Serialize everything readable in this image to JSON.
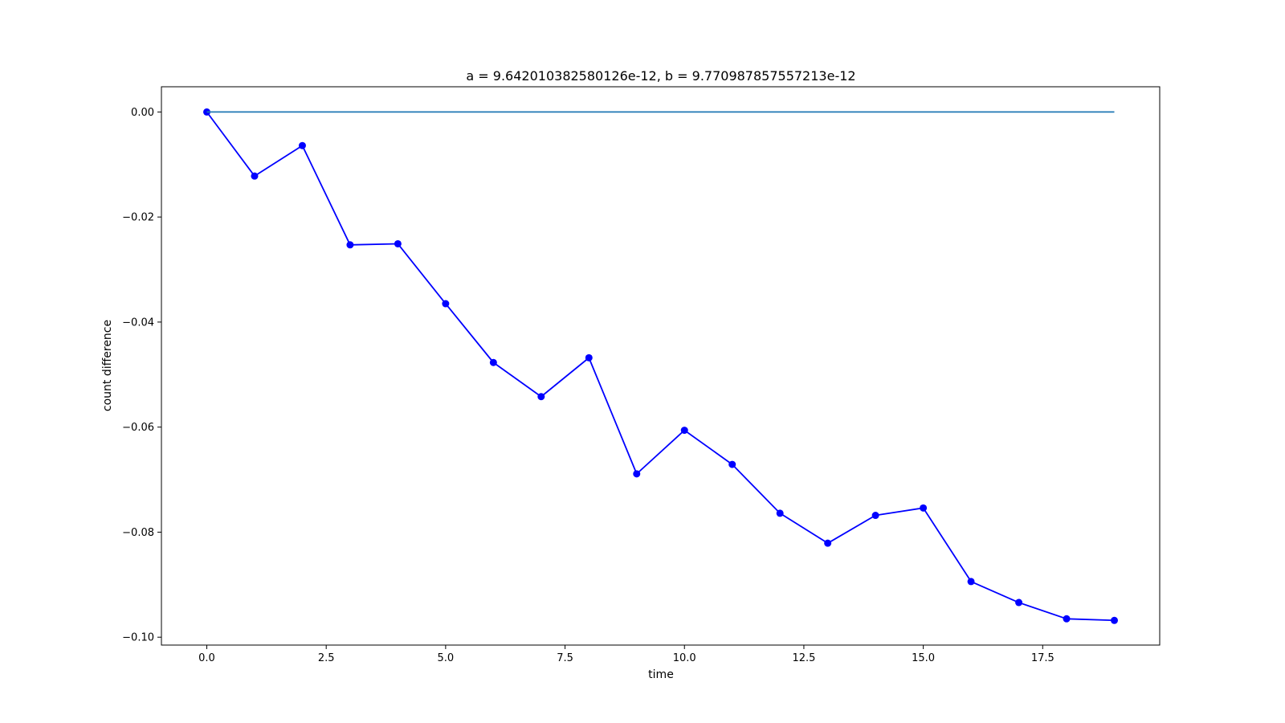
{
  "chart_data": {
    "type": "line",
    "title": "a = 9.642010382580126e-12, b = 9.770987857557213e-12",
    "xlabel": "time",
    "ylabel": "count difference",
    "xlim": [
      -0.95,
      19.95
    ],
    "ylim": [
      -0.1015,
      0.0048
    ],
    "x_ticks": [
      0.0,
      2.5,
      5.0,
      7.5,
      10.0,
      12.5,
      15.0,
      17.5
    ],
    "x_tick_labels": [
      "0.0",
      "2.5",
      "5.0",
      "7.5",
      "10.0",
      "12.5",
      "15.0",
      "17.5"
    ],
    "y_ticks": [
      0.0,
      -0.02,
      -0.04,
      -0.06,
      -0.08,
      -0.1
    ],
    "y_tick_labels": [
      "0.00",
      "−0.02",
      "−0.04",
      "−0.06",
      "−0.08",
      "−0.10"
    ],
    "grid": false,
    "series": [
      {
        "style": "line-markers",
        "color": "#0000ff",
        "x": [
          0,
          1,
          2,
          3,
          4,
          5,
          6,
          7,
          8,
          9,
          10,
          11,
          12,
          13,
          14,
          15,
          16,
          17,
          18,
          19
        ],
        "y": [
          0.0,
          -0.0122,
          -0.0064,
          -0.0253,
          -0.0251,
          -0.0365,
          -0.0477,
          -0.0542,
          -0.0468,
          -0.0689,
          -0.0606,
          -0.0671,
          -0.0764,
          -0.0821,
          -0.0768,
          -0.0754,
          -0.0894,
          -0.0934,
          -0.0965,
          -0.0968
        ]
      },
      {
        "style": "line",
        "color": "#1f77b4",
        "x": [
          0,
          19
        ],
        "y": [
          0.0,
          0.0
        ]
      }
    ]
  }
}
